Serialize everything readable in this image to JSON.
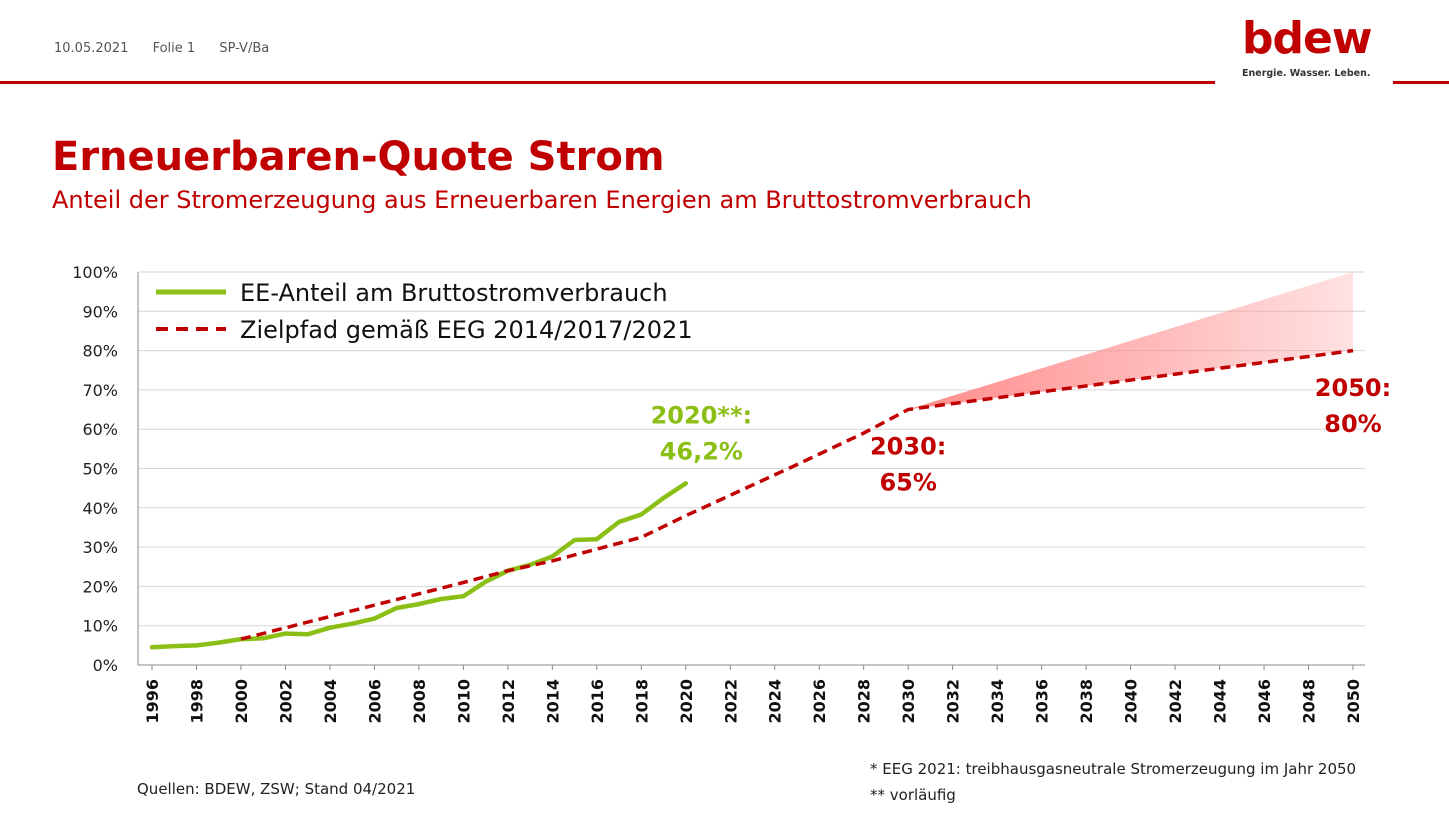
{
  "header": {
    "date": "10.05.2021",
    "slide": "Folie 1",
    "author": "SP-V/Ba",
    "logo_text": "bdew",
    "logo_tagline": "Energie. Wasser. Leben."
  },
  "title": "Erneuerbaren-Quote Strom",
  "subtitle": "Anteil der Stromerzeugung aus Erneuerbaren Energien am Bruttostromverbrauch",
  "source": "Quellen: BDEW, ZSW; Stand 04/2021",
  "footnotes": [
    "* EEG 2021: treibhausgasneutrale Stromerzeugung im Jahr 2050",
    "** vorläufig"
  ],
  "colors": {
    "brand_red": "#c00000",
    "actual_green": "#8cbf16",
    "target_dashed": "#c00000",
    "corridor_fill": "#ff8a8a"
  },
  "chart_data": {
    "type": "line",
    "xlim": [
      1996,
      2050
    ],
    "ylim": [
      0,
      100
    ],
    "x_ticks": [
      "1996",
      "1998",
      "2000",
      "2002",
      "2004",
      "2006",
      "2008",
      "2010",
      "2012",
      "2014",
      "2016",
      "2018",
      "2020",
      "2022",
      "2024",
      "2026",
      "2028",
      "2030",
      "2032",
      "2034",
      "2036",
      "2038",
      "2040",
      "2042",
      "2044",
      "2046",
      "2048",
      "2050"
    ],
    "y_ticks": [
      "0%",
      "10%",
      "20%",
      "30%",
      "40%",
      "50%",
      "60%",
      "70%",
      "80%",
      "90%",
      "100%"
    ],
    "grid": true,
    "legend_position": "top-left",
    "series": [
      {
        "name": "EE-Anteil am Bruttostromverbrauch",
        "style": "solid",
        "points": [
          [
            1996,
            4.5
          ],
          [
            1997,
            4.8
          ],
          [
            1998,
            5.0
          ],
          [
            1999,
            5.7
          ],
          [
            2000,
            6.6
          ],
          [
            2001,
            6.8
          ],
          [
            2002,
            8.0
          ],
          [
            2003,
            7.8
          ],
          [
            2004,
            9.5
          ],
          [
            2005,
            10.5
          ],
          [
            2006,
            11.8
          ],
          [
            2007,
            14.5
          ],
          [
            2008,
            15.5
          ],
          [
            2009,
            16.8
          ],
          [
            2010,
            17.5
          ],
          [
            2011,
            21.2
          ],
          [
            2012,
            24.0
          ],
          [
            2013,
            25.5
          ],
          [
            2014,
            27.6
          ],
          [
            2015,
            31.8
          ],
          [
            2016,
            32.0
          ],
          [
            2017,
            36.4
          ],
          [
            2018,
            38.3
          ],
          [
            2019,
            42.5
          ],
          [
            2020,
            46.2
          ]
        ]
      },
      {
        "name": "Zielpfad gemäß EEG 2014/2017/2021",
        "style": "dashed",
        "points": [
          [
            2000,
            6.6
          ],
          [
            2010,
            21.0
          ],
          [
            2012,
            24.0
          ],
          [
            2014,
            26.5
          ],
          [
            2016,
            29.5
          ],
          [
            2018,
            32.5
          ],
          [
            2020,
            38.0
          ],
          [
            2025,
            51.0
          ],
          [
            2028,
            59.0
          ],
          [
            2030,
            65.0
          ],
          [
            2050,
            80.0
          ]
        ]
      }
    ],
    "corridor": {
      "points_upper": [
        [
          2030,
          65
        ],
        [
          2050,
          100
        ]
      ],
      "points_lower": [
        [
          2030,
          65
        ],
        [
          2050,
          80
        ]
      ]
    },
    "annotations": [
      {
        "line1": "2020**:",
        "line2": "46,2%",
        "color": "#8cbf16",
        "x": 2020.7,
        "y": 61.5
      },
      {
        "line1": "2030:",
        "line2": "65%",
        "color": "#c00000",
        "x": 2030.0,
        "y": 53.5
      },
      {
        "line1": "2050:",
        "line2": "80%",
        "color": "#c00000",
        "x": 2050.0,
        "y": 68.5
      }
    ]
  }
}
